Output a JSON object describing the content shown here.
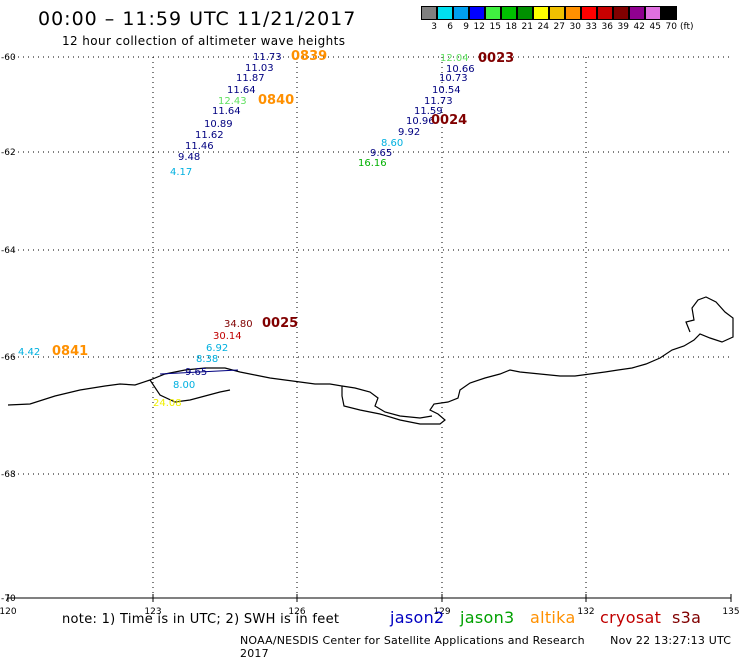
{
  "header": {
    "title": "00:00 – 11:59 UTC 11/21/2017",
    "subtitle": "12 hour collection of altimeter wave heights"
  },
  "colorbar": {
    "unit": "(ft)",
    "items": [
      {
        "label": "3",
        "color": "#808080"
      },
      {
        "label": "6",
        "color": "#00e0f0"
      },
      {
        "label": "9",
        "color": "#00a0f0"
      },
      {
        "label": "12",
        "color": "#0000ff"
      },
      {
        "label": "15",
        "color": "#40f040"
      },
      {
        "label": "18",
        "color": "#00c000"
      },
      {
        "label": "21",
        "color": "#009000"
      },
      {
        "label": "24",
        "color": "#ffff00"
      },
      {
        "label": "27",
        "color": "#f0c000"
      },
      {
        "label": "30",
        "color": "#ff9000"
      },
      {
        "label": "33",
        "color": "#ff0000"
      },
      {
        "label": "36",
        "color": "#c80000"
      },
      {
        "label": "39",
        "color": "#800000"
      },
      {
        "label": "42",
        "color": "#900090"
      },
      {
        "label": "45",
        "color": "#e070e0"
      },
      {
        "label": "70",
        "color": "#000000"
      }
    ]
  },
  "axes": {
    "x_ticks": [
      "120",
      "123",
      "126",
      "129",
      "132",
      "135"
    ],
    "y_ticks": [
      "-60",
      "-62",
      "-64",
      "-66",
      "-68",
      "-70"
    ]
  },
  "colors": {
    "blue": "#0000c0",
    "navy": "#000080",
    "light_green": "#60e060",
    "green": "#00b000",
    "cyan": "#00b0e0",
    "orange": "#ff9000",
    "red": "#c00000",
    "dark_red": "#800000",
    "yellow": "#f0f000"
  },
  "track_labels": [
    {
      "text": "11.73",
      "color": "#000080"
    },
    {
      "text": "11.03",
      "color": "#000080"
    },
    {
      "text": "11.87",
      "color": "#000080"
    },
    {
      "text": "11.64",
      "color": "#000080"
    },
    {
      "text": "12.43",
      "color": "#60e060"
    },
    {
      "text": "11.64",
      "color": "#000080"
    },
    {
      "text": "10.89",
      "color": "#000080"
    },
    {
      "text": "11.62",
      "color": "#000080"
    },
    {
      "text": "11.46",
      "color": "#000080"
    },
    {
      "text": "9.48",
      "color": "#000080"
    },
    {
      "text": "4.17",
      "color": "#00b0e0"
    },
    {
      "text": "0839",
      "color": "#ff9000"
    },
    {
      "text": "0840",
      "color": "#ff9000"
    },
    {
      "text": "12.04",
      "color": "#60e060"
    },
    {
      "text": "10.66",
      "color": "#000080"
    },
    {
      "text": "10.73",
      "color": "#000080"
    },
    {
      "text": "10.54",
      "color": "#000080"
    },
    {
      "text": "11.73",
      "color": "#000080"
    },
    {
      "text": "11.59",
      "color": "#000080"
    },
    {
      "text": "10.96",
      "color": "#000080"
    },
    {
      "text": "9.92",
      "color": "#000080"
    },
    {
      "text": "8.60",
      "color": "#00b0e0"
    },
    {
      "text": "9.65",
      "color": "#000080"
    },
    {
      "text": "16.16",
      "color": "#00b000"
    },
    {
      "text": "0023",
      "color": "#800000"
    },
    {
      "text": "0024",
      "color": "#800000"
    },
    {
      "text": "34.80",
      "color": "#800000"
    },
    {
      "text": "30.14",
      "color": "#c00000"
    },
    {
      "text": "6.92",
      "color": "#00b0e0"
    },
    {
      "text": "8.38",
      "color": "#00b0e0"
    },
    {
      "text": "9.65",
      "color": "#000080"
    },
    {
      "text": "8.00",
      "color": "#00b0e0"
    },
    {
      "text": "24.08",
      "color": "#f0f000"
    },
    {
      "text": "0025",
      "color": "#800000"
    },
    {
      "text": "4.42",
      "color": "#00b0e0"
    },
    {
      "text": "0841",
      "color": "#ff9000"
    }
  ],
  "footer": {
    "note": "note: 1) Time is in UTC; 2) SWH is in feet",
    "satellites": [
      {
        "name": "jason2",
        "color": "#0000c0"
      },
      {
        "name": "jason3",
        "color": "#00a000"
      },
      {
        "name": "altika",
        "color": "#ff9000"
      },
      {
        "name": "cryosat",
        "color": "#c00000"
      },
      {
        "name": "s3a",
        "color": "#800000"
      }
    ],
    "credit": "NOAA/NESDIS Center for Satellite Applications and Research",
    "timestamp": "Nov 22 13:27:13 UTC 2017"
  }
}
